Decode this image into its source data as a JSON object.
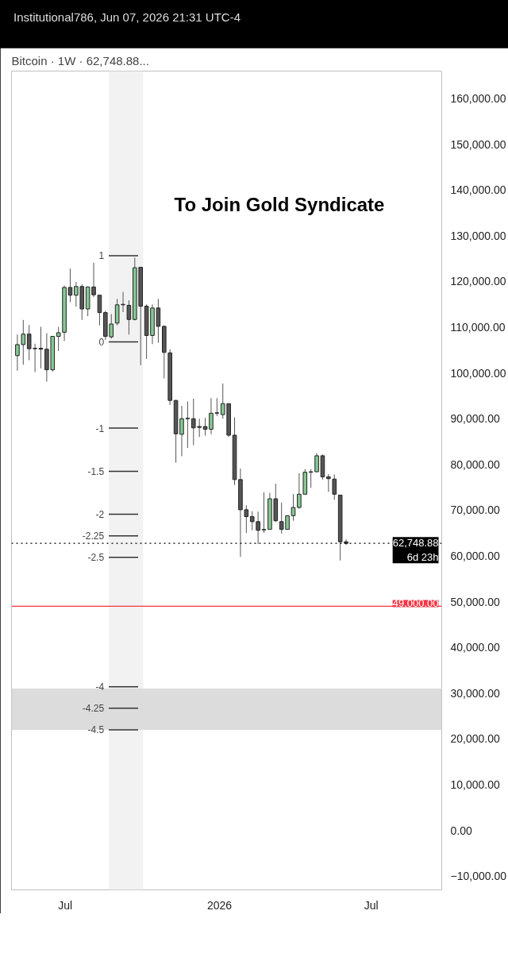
{
  "chart_data": {
    "type": "candlestick",
    "title": "Bitcoin · 1W · 62,748.88...",
    "x": [
      "2025-05-05",
      "2025-05-12",
      "2025-05-19",
      "2025-05-26",
      "2025-06-02",
      "2025-06-09",
      "2025-06-16",
      "2025-06-23",
      "2025-06-30",
      "2025-07-07",
      "2025-07-14",
      "2025-07-21",
      "2025-07-28",
      "2025-08-04",
      "2025-08-11",
      "2025-08-18",
      "2025-08-25",
      "2025-09-01",
      "2025-09-08",
      "2025-09-15",
      "2025-09-22",
      "2025-09-29",
      "2025-10-06",
      "2025-10-13",
      "2025-10-20",
      "2025-10-27",
      "2025-11-03",
      "2025-11-10",
      "2025-11-17",
      "2025-11-24",
      "2025-12-01",
      "2025-12-08",
      "2025-12-15",
      "2025-12-22",
      "2025-12-29",
      "2026-01-05",
      "2026-01-12",
      "2026-01-19",
      "2026-01-26",
      "2026-02-02",
      "2026-02-09",
      "2026-02-16",
      "2026-02-23",
      "2026-03-02",
      "2026-03-09",
      "2026-03-16",
      "2026-03-23",
      "2026-03-30",
      "2026-04-06",
      "2026-04-13",
      "2026-04-20",
      "2026-04-27",
      "2026-05-04",
      "2026-05-11",
      "2026-05-18",
      "2026-05-25",
      "2026-06-01"
    ],
    "ohlc": [
      [
        103800,
        108400,
        100500,
        106200
      ],
      [
        106200,
        111600,
        101800,
        108500
      ],
      [
        108500,
        110500,
        102800,
        105300
      ],
      [
        105300,
        106400,
        100200,
        105400
      ],
      [
        105400,
        110100,
        101000,
        105200
      ],
      [
        105200,
        108700,
        98100,
        100700
      ],
      [
        100700,
        108000,
        100300,
        108000
      ],
      [
        108000,
        110100,
        104800,
        108800
      ],
      [
        108900,
        119100,
        107000,
        118700
      ],
      [
        118700,
        122800,
        115500,
        117000
      ],
      [
        117000,
        119900,
        114500,
        118900
      ],
      [
        118900,
        119400,
        111600,
        114000
      ],
      [
        114000,
        118900,
        112400,
        118800
      ],
      [
        118800,
        124100,
        116600,
        117100
      ],
      [
        117000,
        117000,
        110400,
        113200
      ],
      [
        113200,
        113600,
        107200,
        108000
      ],
      [
        107900,
        112900,
        107500,
        110700
      ],
      [
        110900,
        116200,
        110400,
        114900
      ],
      [
        114900,
        117700,
        113300,
        115000
      ],
      [
        114800,
        115900,
        108400,
        111700
      ],
      [
        111700,
        125200,
        111500,
        123000
      ],
      [
        123100,
        123100,
        101700,
        114600
      ],
      [
        114600,
        115000,
        103100,
        108200
      ],
      [
        108200,
        115000,
        106300,
        114200
      ],
      [
        114200,
        116200,
        106600,
        110200
      ],
      [
        110200,
        110400,
        98800,
        104500
      ],
      [
        104400,
        105200,
        93000,
        94000
      ],
      [
        94000,
        94100,
        80400,
        86700
      ],
      [
        86600,
        92800,
        81800,
        90000
      ],
      [
        90000,
        93800,
        83600,
        90100
      ],
      [
        90000,
        94400,
        84200,
        88000
      ],
      [
        88300,
        90000,
        86000,
        88100
      ],
      [
        88300,
        90200,
        86300,
        87700
      ],
      [
        87700,
        94500,
        86600,
        91200
      ],
      [
        91200,
        94500,
        90600,
        91300
      ],
      [
        90900,
        97700,
        90000,
        93300
      ],
      [
        93300,
        93300,
        86000,
        86400
      ],
      [
        86400,
        90300,
        75500,
        76700
      ],
      [
        76700,
        79100,
        59800,
        70100
      ],
      [
        70100,
        71100,
        65000,
        68600
      ],
      [
        68600,
        69800,
        65600,
        67500
      ],
      [
        67500,
        69700,
        62600,
        65600
      ],
      [
        65700,
        73900,
        65100,
        65800
      ],
      [
        65800,
        73800,
        65800,
        72500
      ],
      [
        72500,
        75800,
        67400,
        67700
      ],
      [
        67500,
        71700,
        64900,
        65800
      ],
      [
        65800,
        68800,
        65800,
        68800
      ],
      [
        68800,
        73500,
        67700,
        70600
      ],
      [
        70600,
        78100,
        70300,
        73500
      ],
      [
        73500,
        79000,
        73500,
        78300
      ],
      [
        78300,
        79000,
        74900,
        78400
      ],
      [
        78400,
        82500,
        78400,
        81900
      ],
      [
        81900,
        82200,
        76700,
        77300
      ],
      [
        77300,
        77900,
        74000,
        76900
      ],
      [
        76800,
        77800,
        72300,
        73500
      ],
      [
        73300,
        73300,
        59000,
        63100
      ],
      [
        63100,
        63600,
        62400,
        62748.88
      ]
    ],
    "colors": [
      "#86c994",
      "#86c994",
      "#555555",
      "#86c994",
      "#555555",
      "#555555",
      "#86c994",
      "#86c994",
      "#86c994",
      "#555555",
      "#86c994",
      "#555555",
      "#86c994",
      "#555555",
      "#555555",
      "#555555",
      "#86c994",
      "#86c994",
      "#86c994",
      "#555555",
      "#86c994",
      "#555555",
      "#555555",
      "#86c994",
      "#555555",
      "#555555",
      "#555555",
      "#555555",
      "#86c994",
      "#86c994",
      "#555555",
      "#555555",
      "#555555",
      "#86c994",
      "#86c994",
      "#86c994",
      "#555555",
      "#555555",
      "#555555",
      "#555555",
      "#555555",
      "#555555",
      "#86c994",
      "#86c994",
      "#555555",
      "#555555",
      "#86c994",
      "#86c994",
      "#86c994",
      "#86c994",
      "#86c994",
      "#86c994",
      "#555555",
      "#555555",
      "#555555",
      "#555555",
      "#555555"
    ],
    "xlim": [
      "2025-04-28",
      "2026-09-23"
    ],
    "xticks": [
      {
        "value": "2025-07-01",
        "label": "Jul"
      },
      {
        "value": "2026-01-01",
        "label": "2026"
      },
      {
        "value": "2026-07-01",
        "label": "Jul"
      }
    ],
    "ylim": [
      -13000,
      166000
    ],
    "yticks": [
      {
        "value": -10000,
        "label": "−10,000.00"
      },
      {
        "value": 0,
        "label": "0.00"
      },
      {
        "value": 10000,
        "label": "10,000.00"
      },
      {
        "value": 20000,
        "label": "20,000.00"
      },
      {
        "value": 30000,
        "label": "30,000.00"
      },
      {
        "value": 40000,
        "label": "40,000.00"
      },
      {
        "value": 50000,
        "label": "50,000.00"
      },
      {
        "value": 60000,
        "label": "60,000.00"
      },
      {
        "value": 70000,
        "label": "70,000.00"
      },
      {
        "value": 80000,
        "label": "80,000.00"
      },
      {
        "value": 90000,
        "label": "90,000.00"
      },
      {
        "value": 100000,
        "label": "100,000.00"
      },
      {
        "value": 110000,
        "label": "110,000.00"
      },
      {
        "value": 120000,
        "label": "120,000.00"
      },
      {
        "value": 130000,
        "label": "130,000.00"
      },
      {
        "value": 140000,
        "label": "140,000.00"
      },
      {
        "value": 150000,
        "label": "150,000.00"
      },
      {
        "value": 160000,
        "label": "160,000.00"
      }
    ],
    "ref_lines": [
      {
        "axis": "y",
        "value": 62748.88,
        "label": "62,748.88\n6d 23h",
        "color": "#000000",
        "line_style": "dotted"
      },
      {
        "axis": "y",
        "value": 49000,
        "label": "49,000.00",
        "color": "#f23645",
        "line_style": "solid"
      }
    ],
    "bands": [
      {
        "axis": "x",
        "from": "2025-08-22",
        "to": "2025-10-02",
        "label": null,
        "color": "#f2f2f2"
      },
      {
        "axis": "y",
        "from": 22000,
        "to": 31000,
        "label": null,
        "color": "#dcdcdc"
      }
    ],
    "annotations": [
      "Institutional786, Jun 07, 2026 21:31 UTC-4",
      "To Join Gold Syndicate",
      {
        "text": "1",
        "x": "2025-08-22",
        "y": 125650
      },
      {
        "text": "0",
        "x": "2025-08-22",
        "y": 106800
      },
      {
        "text": "-1",
        "x": "2025-08-22",
        "y": 87950
      },
      {
        "text": "-1.5",
        "x": "2025-08-22",
        "y": 78500
      },
      {
        "text": "-2",
        "x": "2025-08-22",
        "y": 69100
      },
      {
        "text": "-2.25",
        "x": "2025-08-22",
        "y": 64400
      },
      {
        "text": "-2.5",
        "x": "2025-08-22",
        "y": 59700
      },
      {
        "text": "-4",
        "x": "2025-08-22",
        "y": 31400
      },
      {
        "text": "-4.25",
        "x": "2025-08-22",
        "y": 26700
      },
      {
        "text": "-4.5",
        "x": "2025-08-22",
        "y": 22000
      }
    ],
    "grid": false
  }
}
